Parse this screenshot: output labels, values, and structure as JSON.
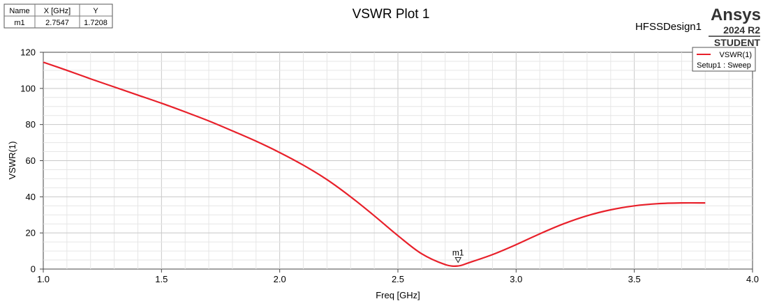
{
  "header": {
    "title": "VSWR Plot 1",
    "design_name": "HFSSDesign1",
    "brand": "Ansys",
    "version": "2024 R2",
    "edition": "STUDENT"
  },
  "marker_table": {
    "headers": [
      "Name",
      "X [GHz]",
      "Y"
    ],
    "rows": [
      [
        "m1",
        "2.7547",
        "1.7208"
      ]
    ]
  },
  "legend": {
    "entries": [
      {
        "label": "VSWR(1)",
        "sublabel": "Setup1 : Sweep",
        "color": "#e8202a"
      }
    ],
    "placement": "top-right"
  },
  "chart_data": {
    "type": "line",
    "title": "VSWR Plot 1",
    "xlabel": "Freq [GHz]",
    "ylabel": "VSWR(1)",
    "xlim": [
      1.0,
      4.0
    ],
    "ylim": [
      0,
      120
    ],
    "x_ticks": [
      "1.0",
      "1.5",
      "2.0",
      "2.5",
      "3.0",
      "3.5",
      "4.0"
    ],
    "y_ticks": [
      "0",
      "20",
      "40",
      "60",
      "80",
      "100",
      "120"
    ],
    "grid": true,
    "series": [
      {
        "name": "VSWR(1)",
        "color": "#e8202a",
        "x": [
          1.0,
          1.1,
          1.2,
          1.3,
          1.4,
          1.5,
          1.6,
          1.7,
          1.8,
          1.9,
          2.0,
          2.1,
          2.2,
          2.3,
          2.4,
          2.5,
          2.6,
          2.7,
          2.7547,
          2.8,
          2.9,
          3.0,
          3.1,
          3.2,
          3.3,
          3.4,
          3.5,
          3.6,
          3.7,
          3.8
        ],
        "y": [
          114.5,
          110.0,
          105.3,
          100.8,
          96.3,
          91.8,
          87.0,
          82.0,
          76.5,
          70.8,
          64.5,
          57.5,
          49.5,
          40.0,
          29.5,
          18.5,
          8.5,
          2.5,
          1.7208,
          3.5,
          8.0,
          13.5,
          19.5,
          25.0,
          29.5,
          32.8,
          35.0,
          36.2,
          36.6,
          36.6
        ]
      }
    ],
    "markers": [
      {
        "name": "m1",
        "x": 2.7547,
        "y": 1.7208
      }
    ]
  }
}
